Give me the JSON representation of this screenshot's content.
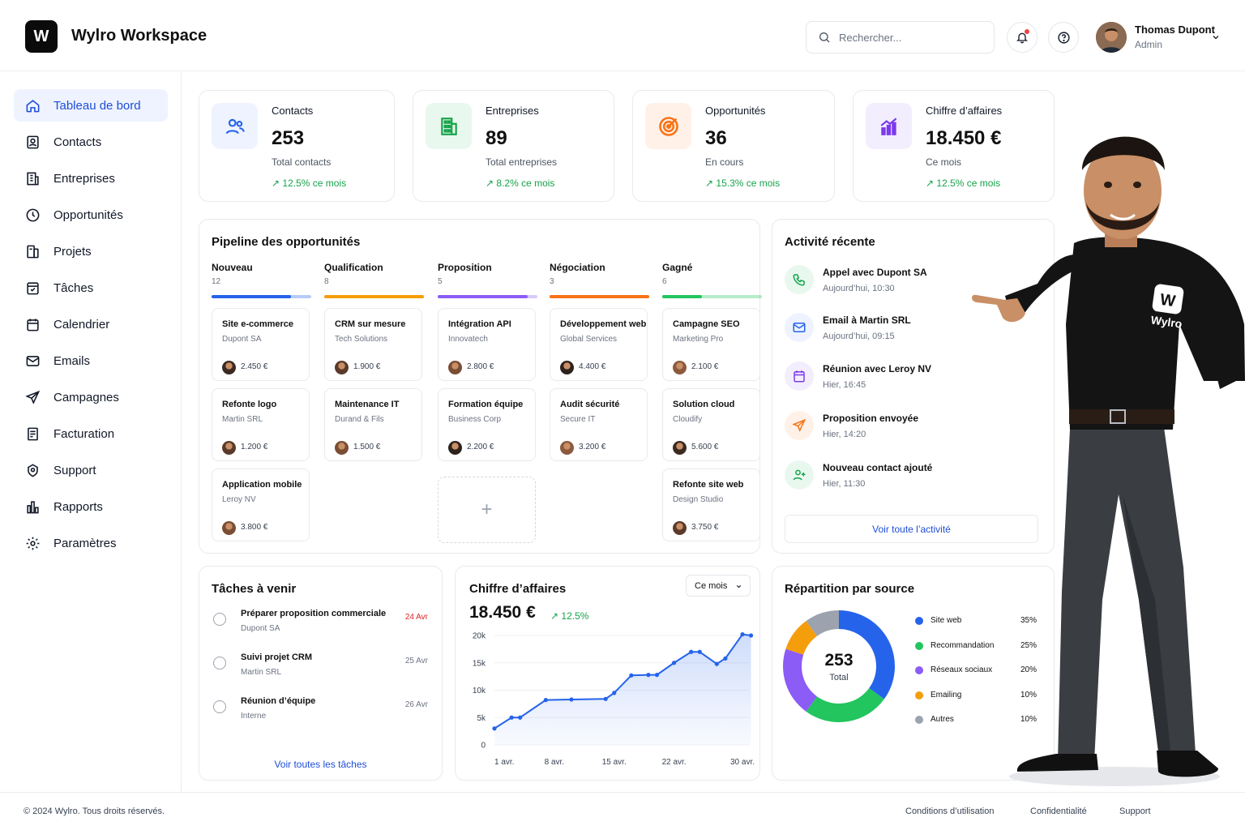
{
  "app": {
    "logo_letter": "W",
    "title": "Wylro Workspace"
  },
  "header": {
    "search_placeholder": "Rechercher...",
    "icons": [
      "search-icon",
      "bell-icon",
      "help-icon",
      "chevron-down-icon"
    ],
    "user": {
      "name": "Thomas Dupont",
      "role": "Admin"
    }
  },
  "sidebar": {
    "items": [
      {
        "label": "Tableau de bord",
        "icon": "home-icon",
        "active": true
      },
      {
        "label": "Contacts",
        "icon": "contact-icon"
      },
      {
        "label": "Entreprises",
        "icon": "building-icon"
      },
      {
        "label": "Opportunités",
        "icon": "clock-icon"
      },
      {
        "label": "Projets",
        "icon": "folder-icon"
      },
      {
        "label": "Tâches",
        "icon": "checklist-icon"
      },
      {
        "label": "Calendrier",
        "icon": "calendar-icon"
      },
      {
        "label": "Emails",
        "icon": "mail-icon"
      },
      {
        "label": "Campagnes",
        "icon": "send-icon"
      },
      {
        "label": "Facturation",
        "icon": "invoice-icon"
      },
      {
        "label": "Support",
        "icon": "support-icon"
      },
      {
        "label": "Rapports",
        "icon": "report-icon"
      },
      {
        "label": "Paramètres",
        "icon": "gear-icon"
      }
    ]
  },
  "stats": [
    {
      "label": "Contacts",
      "value": "253",
      "sub": "Total contacts",
      "trend": "12.5% ce mois",
      "icon": "users-icon",
      "color": "#2563eb",
      "bg": "#eef3ff"
    },
    {
      "label": "Entreprises",
      "value": "89",
      "sub": "Total entreprises",
      "trend": "8.2% ce mois",
      "icon": "building-icon",
      "color": "#16a34a",
      "bg": "#e9f8ef"
    },
    {
      "label": "Opportunités",
      "value": "36",
      "sub": "En cours",
      "trend": "15.3% ce mois",
      "icon": "target-icon",
      "color": "#f97316",
      "bg": "#fff1e8"
    },
    {
      "label": "Chiffre d’affaires",
      "value": "18.450 €",
      "sub": "Ce mois",
      "trend": "12.5% ce mois",
      "icon": "chart-up-icon",
      "color": "#7c3aed",
      "bg": "#f3eefe"
    }
  ],
  "pipeline": {
    "title": "Pipeline des opportunités",
    "stages": [
      {
        "name": "Nouveau",
        "count": "12",
        "color": "#2563eb",
        "fill": 0.8
      },
      {
        "name": "Qualification",
        "count": "8",
        "color": "#f59e0b",
        "fill": 1.0
      },
      {
        "name": "Proposition",
        "count": "5",
        "color": "#8b5cf6",
        "fill": 0.9
      },
      {
        "name": "Négociation",
        "count": "3",
        "color": "#f97316",
        "fill": 1.0
      },
      {
        "name": "Gagné",
        "count": "6",
        "color": "#22c55e",
        "fill": 0.4
      }
    ],
    "deals": [
      [
        {
          "title": "Site e-commerce",
          "company": "Dupont SA",
          "amount": "2.450 €"
        },
        {
          "title": "Refonte logo",
          "company": "Martin SRL",
          "amount": "1.200 €"
        },
        {
          "title": "Application mobile",
          "company": "Leroy NV",
          "amount": "3.800 €"
        }
      ],
      [
        {
          "title": "CRM sur mesure",
          "company": "Tech Solutions",
          "amount": "1.900 €"
        },
        {
          "title": "Maintenance IT",
          "company": "Durand & Fils",
          "amount": "1.500 €"
        }
      ],
      [
        {
          "title": "Intégration API",
          "company": "Innovatech",
          "amount": "2.800 €"
        },
        {
          "title": "Formation équipe",
          "company": "Business Corp",
          "amount": "2.200 €"
        }
      ],
      [
        {
          "title": "Développement web",
          "company": "Global Services",
          "amount": "4.400 €"
        },
        {
          "title": "Audit sécurité",
          "company": "Secure IT",
          "amount": "3.200 €"
        }
      ],
      [
        {
          "title": "Campagne SEO",
          "company": "Marketing Pro",
          "amount": "2.100 €"
        },
        {
          "title": "Solution cloud",
          "company": "Cloudify",
          "amount": "5.600 €"
        },
        {
          "title": "Refonte site web",
          "company": "Design Studio",
          "amount": "3.750 €"
        }
      ]
    ],
    "add_symbol": "+"
  },
  "activity": {
    "title": "Activité récente",
    "items": [
      {
        "title": "Appel avec Dupont SA",
        "time": "Aujourd’hui, 10:30",
        "icon": "phone-icon",
        "color": "#16a34a",
        "bg": "#e9f8ef"
      },
      {
        "title": "Email à Martin SRL",
        "time": "Aujourd’hui, 09:15",
        "icon": "mail-icon",
        "color": "#2563eb",
        "bg": "#eef3ff"
      },
      {
        "title": "Réunion avec Leroy NV",
        "time": "Hier, 16:45",
        "icon": "calendar-icon",
        "color": "#7c3aed",
        "bg": "#f3eefe"
      },
      {
        "title": "Proposition envoyée",
        "time": "Hier, 14:20",
        "icon": "send-icon",
        "color": "#f97316",
        "bg": "#fff1e8"
      },
      {
        "title": "Nouveau contact ajouté",
        "time": "Hier, 11:30",
        "icon": "user-plus-icon",
        "color": "#16a34a",
        "bg": "#e9f8ef"
      }
    ],
    "view_all": "Voir toute l’activité"
  },
  "tasks": {
    "title": "Tâches à venir",
    "items": [
      {
        "title": "Préparer proposition commerciale",
        "sub": "Dupont SA",
        "date": "24 Avr",
        "date_color": "#dc2626"
      },
      {
        "title": "Suivi projet CRM",
        "sub": "Martin SRL",
        "date": "25 Avr",
        "date_color": "#6b7280"
      },
      {
        "title": "Réunion d’équipe",
        "sub": "Interne",
        "date": "26 Avr",
        "date_color": "#6b7280"
      }
    ],
    "view_all": "Voir toutes les tâches"
  },
  "revenue": {
    "title": "Chiffre d’affaires",
    "period": "Ce mois",
    "value": "18.450 €",
    "trend": "12.5%"
  },
  "chart_data": {
    "type": "area",
    "x_ticks": [
      "1 avr.",
      "8 avr.",
      "15 avr.",
      "22 avr.",
      "30 avr."
    ],
    "y_ticks": [
      "20k",
      "15k",
      "10k",
      "5k",
      "0"
    ],
    "ylim": [
      0,
      20000
    ],
    "x_domain": [
      1,
      30
    ],
    "x": [
      1,
      3,
      4,
      7,
      10,
      14,
      15,
      17,
      19,
      20,
      22,
      24,
      25,
      27,
      28,
      30,
      31
    ],
    "values": [
      3000,
      5000,
      5000,
      8200,
      8300,
      8400,
      9500,
      12700,
      12800,
      12800,
      15000,
      17000,
      17000,
      14800,
      15800,
      20200,
      20000
    ],
    "color": "#2563eb"
  },
  "sources": {
    "title": "Répartition par source",
    "center_value": "253",
    "center_label": "Total",
    "items": [
      {
        "label": "Site web",
        "pct": "35%",
        "value": 35,
        "color": "#2563eb"
      },
      {
        "label": "Recommandation",
        "pct": "25%",
        "value": 25,
        "color": "#22c55e"
      },
      {
        "label": "Réseaux sociaux",
        "pct": "20%",
        "value": 20,
        "color": "#8b5cf6"
      },
      {
        "label": "Emailing",
        "pct": "10%",
        "value": 10,
        "color": "#f59e0b"
      },
      {
        "label": "Autres",
        "pct": "10%",
        "value": 10,
        "color": "#9ca3af"
      }
    ]
  },
  "mascot": {
    "shirt_text": "Wylro",
    "logo_letter": "W"
  },
  "footer": {
    "copyright": "© 2024 Wylro. Tous droits réservés.",
    "links": [
      "Conditions d’utilisation",
      "Confidentialité",
      "Support"
    ]
  }
}
